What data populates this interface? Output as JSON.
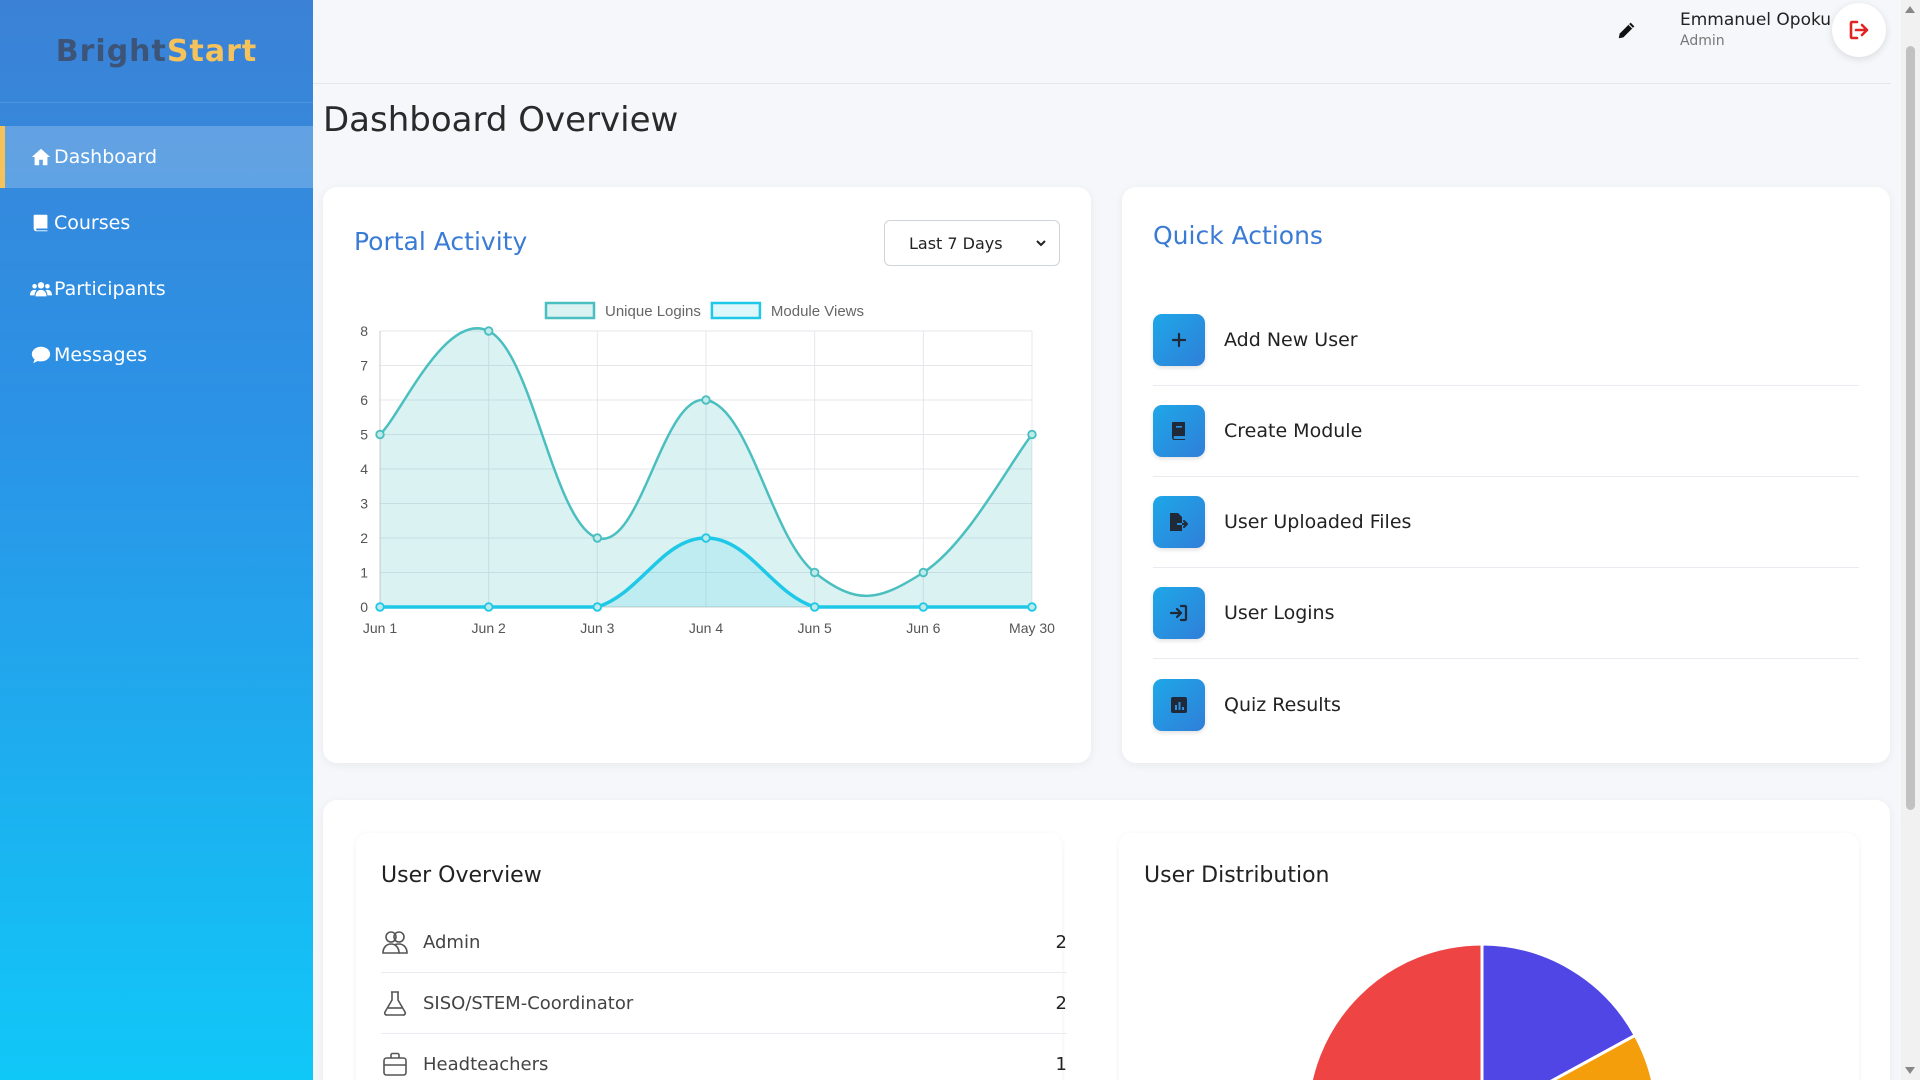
{
  "brand": {
    "part1": "Bright",
    "part2": "Start"
  },
  "sidebar": {
    "items": [
      {
        "label": "Dashboard",
        "icon": "home-icon",
        "active": true
      },
      {
        "label": "Courses",
        "icon": "book-icon",
        "active": false
      },
      {
        "label": "Participants",
        "icon": "users-icon",
        "active": false
      },
      {
        "label": "Messages",
        "icon": "chat-icon",
        "active": false
      }
    ]
  },
  "header": {
    "user_name": "Emmanuel Opoku",
    "user_role": "Admin"
  },
  "page": {
    "title": "Dashboard Overview"
  },
  "activity": {
    "title": "Portal Activity",
    "range_value": "Last 7 Days"
  },
  "chart_data": {
    "type": "line",
    "x": [
      "Jun 1",
      "Jun 2",
      "Jun 3",
      "Jun 4",
      "Jun 5",
      "Jun 6",
      "May 30"
    ],
    "series": [
      {
        "name": "Unique Logins",
        "values": [
          5,
          8,
          2,
          6,
          1,
          1,
          5
        ],
        "color": "#4bbfc0",
        "fill": true
      },
      {
        "name": "Module Views",
        "values": [
          0,
          0,
          0,
          2,
          0,
          0,
          0
        ],
        "color": "#1fc8e6",
        "fill": true
      }
    ],
    "ylim": [
      0,
      8
    ],
    "yticks": [
      0,
      1,
      2,
      3,
      4,
      5,
      6,
      7,
      8
    ],
    "grid": true,
    "legend": "top-center"
  },
  "quick_actions": {
    "title": "Quick Actions",
    "items": [
      {
        "label": "Add New User",
        "icon": "plus-icon"
      },
      {
        "label": "Create Module",
        "icon": "book-icon"
      },
      {
        "label": "User Uploaded Files",
        "icon": "file-export-icon"
      },
      {
        "label": "User Logins",
        "icon": "sign-in-icon"
      },
      {
        "label": "Quiz Results",
        "icon": "chart-icon"
      }
    ]
  },
  "user_overview": {
    "title": "User Overview",
    "rows": [
      {
        "label": "Admin",
        "count": "2",
        "icon": "users-outline-icon"
      },
      {
        "label": "SISO/STEM-Coordinator",
        "count": "2",
        "icon": "flask-icon"
      },
      {
        "label": "Headteachers",
        "count": "1",
        "icon": "briefcase-icon"
      }
    ]
  },
  "user_distribution": {
    "title": "User Distribution",
    "slice_colors": [
      "#4f46e5",
      "#f59e0b",
      "#ef4444"
    ]
  }
}
